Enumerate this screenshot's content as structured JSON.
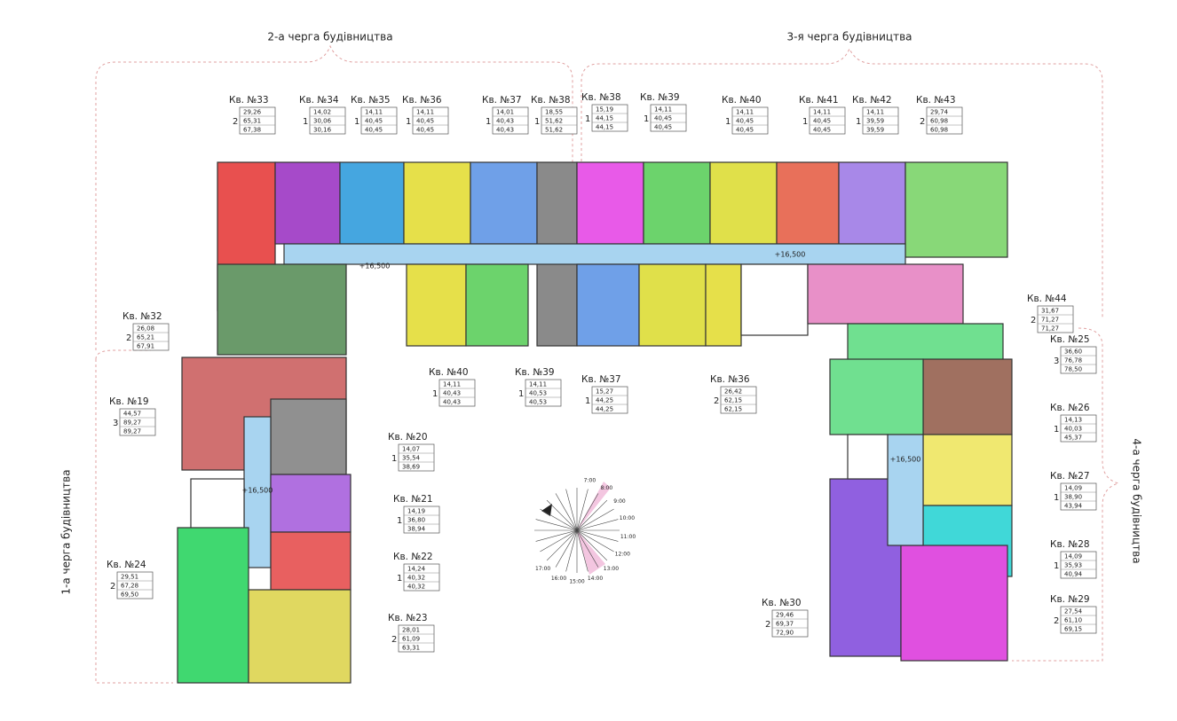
{
  "phases": [
    "2-а черга будівництва",
    "3-я черга будівництва",
    "1-а черга будівництва",
    "4-а черга будівництва"
  ],
  "elevations": [
    "+16,500",
    "+16,500",
    "+16,500",
    "+16,500"
  ],
  "compass": {
    "hours": [
      "7:00",
      "8:00",
      "9:00",
      "10:00",
      "11:00",
      "12:00",
      "13:00",
      "14:00",
      "15:00",
      "16:00",
      "17:00"
    ]
  },
  "apartments": [
    {
      "label": "Кв. №33",
      "rooms": "2",
      "areas": [
        "29,26",
        "65,31",
        "67,38"
      ]
    },
    {
      "label": "Кв. №34",
      "rooms": "1",
      "areas": [
        "14,02",
        "30,06",
        "30,16"
      ]
    },
    {
      "label": "Кв. №35",
      "rooms": "1",
      "areas": [
        "14,11",
        "40,45",
        "40,45"
      ]
    },
    {
      "label": "Кв. №36",
      "rooms": "1",
      "areas": [
        "14,11",
        "40,45",
        "40,45"
      ]
    },
    {
      "label": "Кв. №37",
      "rooms": "1",
      "areas": [
        "14,01",
        "40,43",
        "40,43"
      ]
    },
    {
      "label": "Кв. №38",
      "rooms": "1",
      "areas": [
        "18,55",
        "51,62",
        "51,62"
      ]
    },
    {
      "label": "Кв. №38",
      "rooms": "1",
      "areas": [
        "15,19",
        "44,15",
        "44,15"
      ]
    },
    {
      "label": "Кв. №39",
      "rooms": "1",
      "areas": [
        "14,11",
        "40,45",
        "40,45"
      ]
    },
    {
      "label": "Кв. №40",
      "rooms": "1",
      "areas": [
        "14,11",
        "40,45",
        "40,45"
      ]
    },
    {
      "label": "Кв. №41",
      "rooms": "1",
      "areas": [
        "14,11",
        "40,45",
        "40,45"
      ]
    },
    {
      "label": "Кв. №42",
      "rooms": "1",
      "areas": [
        "14,11",
        "39,59",
        "39,59"
      ]
    },
    {
      "label": "Кв. №43",
      "rooms": "2",
      "areas": [
        "29,74",
        "60,98",
        "60,98"
      ]
    },
    {
      "label": "Кв. №44",
      "rooms": "2",
      "areas": [
        "31,67",
        "71,27",
        "71,27"
      ]
    },
    {
      "label": "Кв. №32",
      "rooms": "2",
      "areas": [
        "26,08",
        "65,21",
        "67,91"
      ]
    },
    {
      "label": "Кв. №25",
      "rooms": "3",
      "areas": [
        "36,60",
        "76,78",
        "78,50"
      ]
    },
    {
      "label": "Кв. №19",
      "rooms": "3",
      "areas": [
        "44,57",
        "89,27",
        "89,27"
      ]
    },
    {
      "label": "Кв. №40",
      "rooms": "1",
      "areas": [
        "14,11",
        "40,43",
        "40,43"
      ]
    },
    {
      "label": "Кв. №39",
      "rooms": "1",
      "areas": [
        "14,11",
        "40,53",
        "40,53"
      ]
    },
    {
      "label": "Кв. №37",
      "rooms": "1",
      "areas": [
        "15,27",
        "44,25",
        "44,25"
      ]
    },
    {
      "label": "Кв. №36",
      "rooms": "2",
      "areas": [
        "26,42",
        "62,15",
        "62,15"
      ]
    },
    {
      "label": "Кв. №26",
      "rooms": "1",
      "areas": [
        "14,13",
        "40,03",
        "45,37"
      ]
    },
    {
      "label": "Кв. №20",
      "rooms": "1",
      "areas": [
        "14,07",
        "35,54",
        "38,69"
      ]
    },
    {
      "label": "Кв. №27",
      "rooms": "1",
      "areas": [
        "14,09",
        "38,90",
        "43,94"
      ]
    },
    {
      "label": "Кв. №21",
      "rooms": "1",
      "areas": [
        "14,19",
        "36,80",
        "38,94"
      ]
    },
    {
      "label": "Кв. №22",
      "rooms": "1",
      "areas": [
        "14,24",
        "40,32",
        "40,32"
      ]
    },
    {
      "label": "Кв. №28",
      "rooms": "1",
      "areas": [
        "14,09",
        "35,93",
        "40,94"
      ]
    },
    {
      "label": "Кв. №24",
      "rooms": "2",
      "areas": [
        "29,51",
        "67,28",
        "69,50"
      ]
    },
    {
      "label": "Кв. №30",
      "rooms": "2",
      "areas": [
        "29,46",
        "69,37",
        "72,90"
      ]
    },
    {
      "label": "Кв. №29",
      "rooms": "2",
      "areas": [
        "27,54",
        "61,10",
        "69,15"
      ]
    },
    {
      "label": "Кв. №23",
      "rooms": "2",
      "areas": [
        "28,01",
        "61,09",
        "63,31"
      ]
    }
  ]
}
